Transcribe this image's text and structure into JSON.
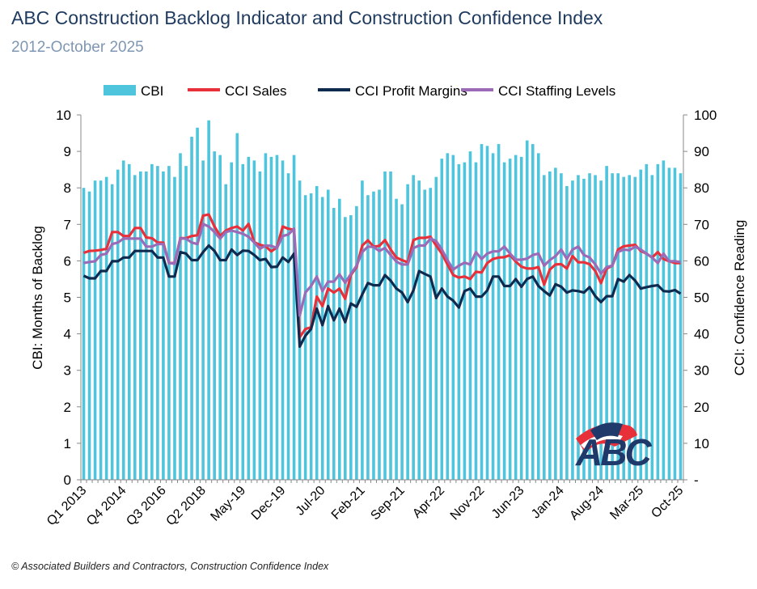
{
  "header": {
    "title": "ABC Construction Backlog Indicator and Construction Confidence Index",
    "subtitle": "2012-October 2025"
  },
  "footer": {
    "source": "© Associated Builders and Contractors, Construction Confidence Index"
  },
  "logo": {
    "text": "ABC"
  },
  "chart_data": {
    "type": "bar+line",
    "title": "ABC Construction Backlog Indicator and Construction Confidence Index",
    "subtitle": "2012-October 2025",
    "ylabel": "CBI: Months of Backlog",
    "y2label": "CCI: Confidence Reading",
    "ylim": [
      0,
      10
    ],
    "y2lim": [
      0,
      100
    ],
    "yticks": [
      "0",
      "1",
      "2",
      "3",
      "4",
      "5",
      "6",
      "7",
      "8",
      "9",
      "10"
    ],
    "y2ticks": [
      "-",
      "10",
      "20",
      "30",
      "40",
      "50",
      "60",
      "70",
      "80",
      "90",
      "100"
    ],
    "legend_position": "top",
    "grid": false,
    "x_tick_labels": [
      "Q1 2013",
      "Q4 2014",
      "Q3 2016",
      "Q2 2018",
      "May-19",
      "Dec-19",
      "Jul-20",
      "Feb-21",
      "Sep-21",
      "Apr-22",
      "Nov-22",
      "Jun-23",
      "Jan-24",
      "Aug-24",
      "Mar-25",
      "Oct-25"
    ],
    "x_tick_every": 7,
    "series": [
      {
        "name": "CBI",
        "type": "bar",
        "axis": "left",
        "color": "#4ec4dd",
        "values": [
          8.0,
          7.9,
          8.2,
          8.2,
          8.3,
          8.1,
          8.5,
          8.75,
          8.65,
          8.35,
          8.45,
          8.45,
          8.65,
          8.6,
          8.45,
          8.6,
          8.3,
          8.95,
          8.6,
          9.4,
          9.65,
          8.75,
          9.85,
          9.0,
          8.9,
          8.1,
          8.7,
          9.5,
          8.65,
          8.85,
          8.75,
          8.45,
          8.95,
          8.85,
          8.9,
          8.75,
          8.4,
          8.9,
          8.2,
          7.8,
          7.85,
          8.05,
          7.75,
          7.95,
          7.45,
          7.7,
          7.2,
          7.25,
          7.5,
          8.2,
          7.8,
          7.9,
          7.95,
          8.45,
          8.45,
          7.7,
          7.55,
          8.1,
          8.35,
          8.2,
          7.95,
          8.0,
          8.3,
          8.8,
          8.95,
          8.9,
          8.65,
          8.7,
          9.0,
          8.7,
          9.2,
          9.15,
          8.95,
          9.2,
          8.7,
          8.8,
          8.9,
          8.85,
          9.3,
          9.2,
          8.95,
          8.35,
          8.45,
          8.55,
          8.4,
          8.05,
          8.2,
          8.35,
          8.25,
          8.4,
          8.35,
          8.2,
          8.6,
          8.4,
          8.4,
          8.3,
          8.35,
          8.3,
          8.5,
          8.65,
          8.35,
          8.65,
          8.75,
          8.55,
          8.55,
          8.4
        ]
      },
      {
        "name": "CCI Sales",
        "type": "line",
        "axis": "right",
        "color": "#e8303a",
        "values": [
          62.2,
          62.7,
          62.8,
          63.0,
          63.3,
          67.9,
          67.9,
          66.8,
          66.8,
          69.0,
          69.0,
          66.4,
          66.2,
          65.0,
          65.0,
          59.4,
          59.4,
          66.2,
          66.2,
          66.8,
          67.0,
          72.4,
          72.7,
          69.4,
          66.8,
          68.3,
          69.0,
          69.4,
          68.3,
          70.1,
          65.1,
          64.4,
          64.0,
          62.6,
          63.7,
          69.4,
          68.8,
          68.5,
          39.1,
          41.3,
          41.8,
          50.2,
          47.6,
          52.4,
          51.3,
          52.4,
          49.6,
          56.1,
          58.3,
          64.2,
          65.6,
          63.9,
          64.1,
          65.7,
          63.1,
          60.9,
          60.2,
          59.6,
          65.7,
          66.3,
          66.3,
          66.6,
          64.2,
          62.0,
          59.0,
          56.1,
          55.4,
          55.7,
          55.0,
          57.0,
          56.8,
          59.4,
          60.5,
          60.9,
          61.0,
          61.6,
          59.8,
          58.4,
          57.9,
          57.9,
          58.3,
          53.5,
          57.6,
          59.0,
          59.1,
          57.9,
          61.3,
          59.6,
          59.6,
          59.1,
          57.2,
          53.9,
          57.9,
          58.7,
          63.1,
          64.0,
          64.2,
          64.4,
          62.7,
          62.0,
          60.9,
          62.4,
          60.5,
          59.9,
          59.4,
          59.4
        ]
      },
      {
        "name": "CCI Profit Margins",
        "type": "line",
        "axis": "right",
        "color": "#0f2a4f",
        "values": [
          55.9,
          55.2,
          55.2,
          57.2,
          57.2,
          59.9,
          59.9,
          60.9,
          60.9,
          62.7,
          62.7,
          62.7,
          62.7,
          60.9,
          60.9,
          55.7,
          55.7,
          62.4,
          62.0,
          60.2,
          60.2,
          62.4,
          64.2,
          62.7,
          60.2,
          60.2,
          63.1,
          61.6,
          62.8,
          62.7,
          61.6,
          60.2,
          60.5,
          58.3,
          58.4,
          60.9,
          59.7,
          62.0,
          36.5,
          39.5,
          41.3,
          46.9,
          42.4,
          47.6,
          43.7,
          46.9,
          43.2,
          48.3,
          47.4,
          50.8,
          53.9,
          53.3,
          53.3,
          56.1,
          54.6,
          52.4,
          51.3,
          48.7,
          51.9,
          57.2,
          56.4,
          55.7,
          49.8,
          52.4,
          50.2,
          49.1,
          47.2,
          51.7,
          52.4,
          50.2,
          50.2,
          51.9,
          55.7,
          55.7,
          53.1,
          53.1,
          55.0,
          52.9,
          55.0,
          55.7,
          53.1,
          51.7,
          50.5,
          53.6,
          52.9,
          51.3,
          51.9,
          51.7,
          51.3,
          52.8,
          50.3,
          48.7,
          50.3,
          50.3,
          55.0,
          54.3,
          56.1,
          54.6,
          52.4,
          52.8,
          53.1,
          53.3,
          51.7,
          51.6,
          52.0,
          51.0
        ]
      },
      {
        "name": "CCI Staffing Levels",
        "type": "line",
        "axis": "right",
        "color": "#9b6bb7",
        "values": [
          59.4,
          59.7,
          59.9,
          61.6,
          62.0,
          64.6,
          65.0,
          66.1,
          66.1,
          66.1,
          66.1,
          63.9,
          63.9,
          64.6,
          64.6,
          59.4,
          59.2,
          66.1,
          66.1,
          65.0,
          64.6,
          70.1,
          69.4,
          67.9,
          66.1,
          67.9,
          68.3,
          67.9,
          67.4,
          66.6,
          65.0,
          63.3,
          64.2,
          64.1,
          63.5,
          66.8,
          67.2,
          68.8,
          45.0,
          51.3,
          53.1,
          55.7,
          51.7,
          54.3,
          54.3,
          56.3,
          54.0,
          56.4,
          58.7,
          62.4,
          63.9,
          63.8,
          62.7,
          63.5,
          61.6,
          59.8,
          59.0,
          59.0,
          63.5,
          64.2,
          64.2,
          66.1,
          65.4,
          63.1,
          60.2,
          57.6,
          58.7,
          59.5,
          59.0,
          62.4,
          60.5,
          62.0,
          62.6,
          62.6,
          63.9,
          62.0,
          60.3,
          60.3,
          60.6,
          61.6,
          62.0,
          58.7,
          60.2,
          61.3,
          63.1,
          60.5,
          63.1,
          63.9,
          61.6,
          60.9,
          59.0,
          56.5,
          58.3,
          58.7,
          62.4,
          63.1,
          62.9,
          63.9,
          63.1,
          62.0,
          60.9,
          59.4,
          62.0,
          59.9,
          59.9,
          59.7
        ]
      }
    ]
  }
}
